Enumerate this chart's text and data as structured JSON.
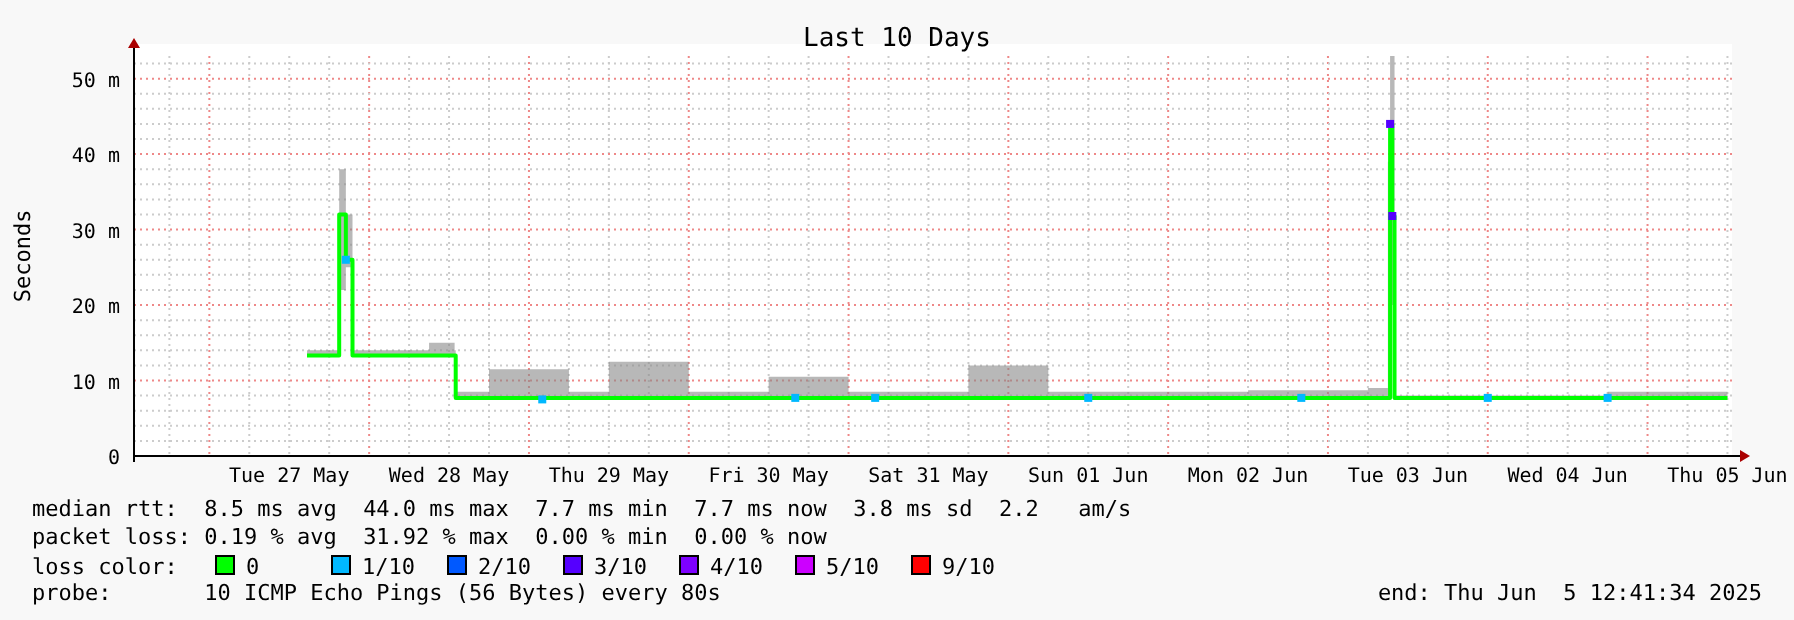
{
  "chart_data": {
    "type": "line",
    "title": "Last 10 Days",
    "ylabel": "Seconds",
    "xlim": [
      "2025-05-26T12:41",
      "2025-06-05T12:41"
    ],
    "xticks": [
      {
        "value": "2025-05-27T12:00",
        "label": "Tue 27 May"
      },
      {
        "value": "2025-05-28T12:00",
        "label": "Wed 28 May"
      },
      {
        "value": "2025-05-29T12:00",
        "label": "Thu 29 May"
      },
      {
        "value": "2025-05-30T12:00",
        "label": "Fri 30 May"
      },
      {
        "value": "2025-05-31T12:00",
        "label": "Sat 31 May"
      },
      {
        "value": "2025-06-01T12:00",
        "label": "Sun 01 Jun"
      },
      {
        "value": "2025-06-02T12:00",
        "label": "Mon 02 Jun"
      },
      {
        "value": "2025-06-03T12:00",
        "label": "Tue 03 Jun"
      },
      {
        "value": "2025-06-04T12:00",
        "label": "Wed 04 Jun"
      },
      {
        "value": "2025-06-05T12:00",
        "label": "Thu 05 Jun"
      }
    ],
    "ylim": [
      0,
      53
    ],
    "yticks": [
      0,
      {
        "value": 10,
        "label": "10 m"
      },
      {
        "value": 20,
        "label": "20 m"
      },
      {
        "value": 30,
        "label": "30 m"
      },
      {
        "value": 40,
        "label": "40 m"
      },
      {
        "value": 50,
        "label": "50 m"
      }
    ],
    "grid": true,
    "legend": "bottom",
    "legend_title": "loss color:",
    "series": [
      {
        "name": "0",
        "color": "#00ff00",
        "x": [
          "2025-05-27T14:40",
          "2025-05-27T18:30",
          "2025-05-27T19:30",
          "2025-05-27T20:30",
          "2025-05-27T21:30",
          "2025-05-28T03:00",
          "2025-05-28T09:00",
          "2025-05-28T12:50",
          "2025-05-28T13:00",
          "2025-05-28T18:00",
          "2025-05-29T06:00",
          "2025-05-29T12:00",
          "2025-05-30T00:00",
          "2025-05-30T12:00",
          "2025-05-31T00:00",
          "2025-05-31T18:00",
          "2025-06-01T06:00",
          "2025-06-02T12:00",
          "2025-06-03T06:00",
          "2025-06-03T09:00",
          "2025-06-03T09:20",
          "2025-06-03T09:40",
          "2025-06-03T10:00",
          "2025-06-04T00:00",
          "2025-06-04T18:00",
          "2025-06-05T12:00"
        ],
        "values": [
          13.3,
          13.3,
          32,
          26,
          13.3,
          13.3,
          13.3,
          13.3,
          7.7,
          7.7,
          7.7,
          7.7,
          7.7,
          7.7,
          7.7,
          7.7,
          7.7,
          7.7,
          7.7,
          7.7,
          44,
          31.8,
          7.7,
          7.7,
          7.7,
          7.7
        ],
        "lower": [
          13.3,
          13.3,
          22,
          25,
          13.3,
          13.3,
          13.3,
          13.3,
          7.7,
          7.7,
          7.7,
          7.7,
          7.7,
          7.7,
          7.7,
          7.7,
          7.7,
          7.7,
          7.7,
          7.7,
          20,
          20,
          7.7,
          7.7,
          7.7,
          7.7
        ],
        "upper": [
          14,
          14,
          38,
          32,
          14,
          14,
          15,
          14,
          8.5,
          11.5,
          8.5,
          12.5,
          8.5,
          10.5,
          8.5,
          12,
          8.5,
          8.7,
          9,
          39,
          53,
          53,
          8,
          8,
          8.5,
          8
        ]
      },
      {
        "name": "1/10",
        "type": "scatter",
        "color": "#00b8ff",
        "x": [
          "2025-05-27T20:30",
          "2025-05-29T02:00",
          "2025-05-30T16:00",
          "2025-05-31T04:00",
          "2025-06-01T12:00",
          "2025-06-02T20:00",
          "2025-06-04T00:00",
          "2025-06-04T18:00"
        ],
        "values": [
          26,
          7.5,
          7.7,
          7.7,
          7.7,
          7.7,
          7.7,
          7.7
        ]
      },
      {
        "name": "2/10",
        "type": "scatter",
        "color": "#0059ff"
      },
      {
        "name": "3/10",
        "type": "scatter",
        "color": "#5500ff",
        "x": [
          "2025-06-03T09:20",
          "2025-06-03T09:40"
        ],
        "values": [
          44,
          31.8
        ]
      },
      {
        "name": "4/10",
        "type": "scatter",
        "color": "#7e00ff"
      },
      {
        "name": "5/10",
        "type": "scatter",
        "color": "#cc00ff"
      },
      {
        "name": "9/10",
        "type": "scatter",
        "color": "#ff0000"
      }
    ],
    "annotations": [
      "median rtt:  8.5 ms avg  44.0 ms max  7.7 ms min  7.7 ms now  3.8 ms sd  2.2   am/s",
      "packet loss: 0.19 % avg  31.92 % max  0.00 % min  0.00 % now",
      "probe:       10 ICMP Echo Pings (56 Bytes) every 80s",
      "end: Thu Jun  5 12:41:34 2025"
    ]
  }
}
